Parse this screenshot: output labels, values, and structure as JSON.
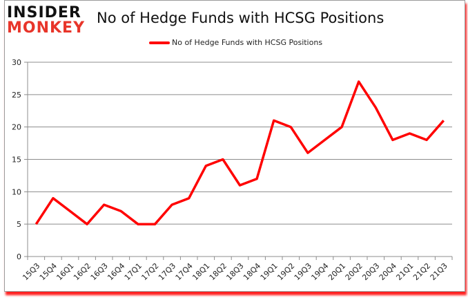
{
  "logo": {
    "line1": "INSIDER",
    "line2": "MONKEY"
  },
  "chart_data": {
    "type": "line",
    "title": "No of Hedge Funds with HCSG Positions",
    "xlabel": "",
    "ylabel": "",
    "ylim": [
      0,
      30
    ],
    "yticks": [
      0,
      5,
      10,
      15,
      20,
      25,
      30
    ],
    "grid": true,
    "legend_position": "top",
    "categories": [
      "15Q3",
      "15Q4",
      "16Q1",
      "16Q2",
      "16Q3",
      "16Q4",
      "17Q1",
      "17Q2",
      "17Q3",
      "17Q4",
      "18Q1",
      "18Q2",
      "18Q3",
      "18Q4",
      "19Q1",
      "19Q2",
      "19Q3",
      "19Q4",
      "20Q1",
      "20Q2",
      "20Q3",
      "20Q4",
      "21Q1",
      "21Q2",
      "21Q3"
    ],
    "series": [
      {
        "name": "No of Hedge Funds with HCSG Positions",
        "color": "#ff0000",
        "values": [
          5,
          9,
          7,
          5,
          8,
          7,
          5,
          5,
          8,
          9,
          14,
          15,
          11,
          12,
          21,
          20,
          16,
          18,
          20,
          27,
          23,
          18,
          19,
          18,
          21
        ]
      }
    ]
  }
}
